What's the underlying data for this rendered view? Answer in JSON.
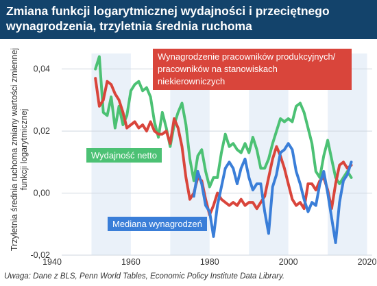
{
  "header": {
    "title": "Zmiana funkcji logarytmicznej wydajności i przeciętnego wynagrodzenia, trzyletnia średnia ruchoma"
  },
  "footnote": "Uwaga: Dane z BLS, Penn World Tables, Economic Policy Institute Data Library.",
  "colors": {
    "header_bg": "#13436b",
    "band": "#eaf1f9",
    "productivity": "#4cc174",
    "compensation": "#d9453b",
    "median": "#3a7ed8"
  },
  "chart_data": {
    "type": "line",
    "title": "Zmiana funkcji logarytmicznej wydajności i przeciętnego wynagrodzenia, trzyletnia średnia ruchoma",
    "ylabel": "Trzyletnia średnia ruchoma zmiany wartości zmiennej funkcji logarytmicznej",
    "xlabel": "",
    "xlim": [
      1940,
      2022
    ],
    "ylim": [
      -0.02,
      0.045
    ],
    "x_ticks": [
      1940,
      1960,
      1980,
      2000,
      2020
    ],
    "x_tick_labels": [
      "1940",
      "1960",
      "1980",
      "2000",
      "2020"
    ],
    "y_ticks": [
      -0.02,
      0.0,
      0.02,
      0.04
    ],
    "y_tick_labels": [
      "-0,02",
      "0,00",
      "0,02",
      "0,04"
    ],
    "grid": "horizontal",
    "series": [
      {
        "name": "Wydajność netto",
        "color": "#4cc174",
        "x": [
          1951,
          1952,
          1953,
          1954,
          1955,
          1956,
          1957,
          1958,
          1959,
          1960,
          1961,
          1962,
          1963,
          1964,
          1965,
          1966,
          1967,
          1968,
          1969,
          1970,
          1971,
          1972,
          1973,
          1974,
          1975,
          1976,
          1977,
          1978,
          1979,
          1980,
          1981,
          1982,
          1983,
          1984,
          1985,
          1986,
          1987,
          1988,
          1989,
          1990,
          1991,
          1992,
          1993,
          1994,
          1995,
          1996,
          1997,
          1998,
          1999,
          2000,
          2001,
          2002,
          2003,
          2004,
          2005,
          2006,
          2007,
          2008,
          2009,
          2010,
          2011,
          2012,
          2013,
          2014,
          2015,
          2016
        ],
        "values": [
          0.04,
          0.044,
          0.026,
          0.025,
          0.031,
          0.021,
          0.028,
          0.022,
          0.025,
          0.033,
          0.035,
          0.036,
          0.033,
          0.034,
          0.031,
          0.023,
          0.018,
          0.026,
          0.021,
          0.015,
          0.022,
          0.026,
          0.029,
          0.022,
          0.011,
          0.004,
          0.012,
          0.014,
          0.007,
          0.002,
          0.005,
          0.005,
          0.013,
          0.019,
          0.015,
          0.016,
          0.014,
          0.013,
          0.016,
          0.013,
          0.018,
          0.014,
          0.008,
          0.008,
          0.011,
          0.016,
          0.02,
          0.024,
          0.023,
          0.024,
          0.023,
          0.028,
          0.029,
          0.026,
          0.021,
          0.016,
          0.007,
          0.005,
          0.012,
          0.017,
          0.011,
          0.005,
          0.003,
          0.005,
          0.007,
          0.005
        ]
      },
      {
        "name": "Wynagrodzenie pracowników produkcyjnych/ pracowników na stanowiskach niekierowniczych",
        "color": "#d9453b",
        "x": [
          1951,
          1952,
          1953,
          1954,
          1955,
          1956,
          1957,
          1958,
          1959,
          1960,
          1961,
          1962,
          1963,
          1964,
          1965,
          1966,
          1967,
          1968,
          1969,
          1970,
          1971,
          1972,
          1973,
          1974,
          1975,
          1976,
          1977,
          1978,
          1979,
          1980,
          1981,
          1982,
          1983,
          1984,
          1985,
          1986,
          1987,
          1988,
          1989,
          1990,
          1991,
          1992,
          1993,
          1994,
          1995,
          1996,
          1997,
          1998,
          1999,
          2000,
          2001,
          2002,
          2003,
          2004,
          2005,
          2006,
          2007,
          2008,
          2009,
          2010,
          2011,
          2012,
          2013,
          2014,
          2015,
          2016
        ],
        "values": [
          0.037,
          0.028,
          0.03,
          0.036,
          0.035,
          0.032,
          0.03,
          0.026,
          0.021,
          0.022,
          0.023,
          0.021,
          0.022,
          0.02,
          0.023,
          0.02,
          0.019,
          0.019,
          0.02,
          0.016,
          0.024,
          0.021,
          0.015,
          0.005,
          -0.002,
          0.0,
          0.005,
          0.004,
          -0.002,
          -0.007,
          -0.004,
          0.0,
          -0.002,
          -0.003,
          -0.004,
          -0.003,
          -0.004,
          -0.002,
          -0.004,
          -0.003,
          -0.003,
          -0.005,
          -0.003,
          -0.001,
          0.005,
          0.011,
          0.015,
          0.012,
          0.008,
          0.003,
          -0.002,
          -0.004,
          -0.003,
          -0.005,
          0.003,
          0.003,
          0.001,
          0.004,
          0.005,
          0.001,
          -0.005,
          0.003,
          0.009,
          0.01,
          0.008,
          0.009
        ]
      },
      {
        "name": "Mediana wynagrodzeń",
        "color": "#3a7ed8",
        "x": [
          1976,
          1977,
          1978,
          1979,
          1980,
          1981,
          1982,
          1983,
          1984,
          1985,
          1986,
          1987,
          1988,
          1989,
          1990,
          1991,
          1992,
          1993,
          1994,
          1995,
          1996,
          1997,
          1998,
          1999,
          2000,
          2001,
          2002,
          2003,
          2004,
          2005,
          2006,
          2007,
          2008,
          2009,
          2010,
          2011,
          2012,
          2013,
          2014,
          2015,
          2016
        ],
        "values": [
          -0.001,
          0.007,
          0.003,
          -0.004,
          -0.006,
          -0.014,
          -0.004,
          0.002,
          0.008,
          0.01,
          0.008,
          0.003,
          0.008,
          0.011,
          0.005,
          0.001,
          0.003,
          0.003,
          -0.006,
          -0.013,
          0.002,
          0.006,
          0.013,
          0.014,
          0.016,
          0.014,
          0.007,
          0.003,
          -0.002,
          -0.006,
          -0.003,
          -0.004,
          0.003,
          0.007,
          0.0,
          -0.008,
          -0.016,
          -0.003,
          0.004,
          0.006,
          0.01
        ]
      }
    ],
    "annotations": [
      {
        "series": 1,
        "text": "Wynagrodzenie pracowników produkcyjnych/ pracowników na stanowiskach niekierowniczych"
      },
      {
        "series": 0,
        "text": "Wydajność netto"
      },
      {
        "series": 2,
        "text": "Mediana wynagrodzeń"
      }
    ]
  }
}
